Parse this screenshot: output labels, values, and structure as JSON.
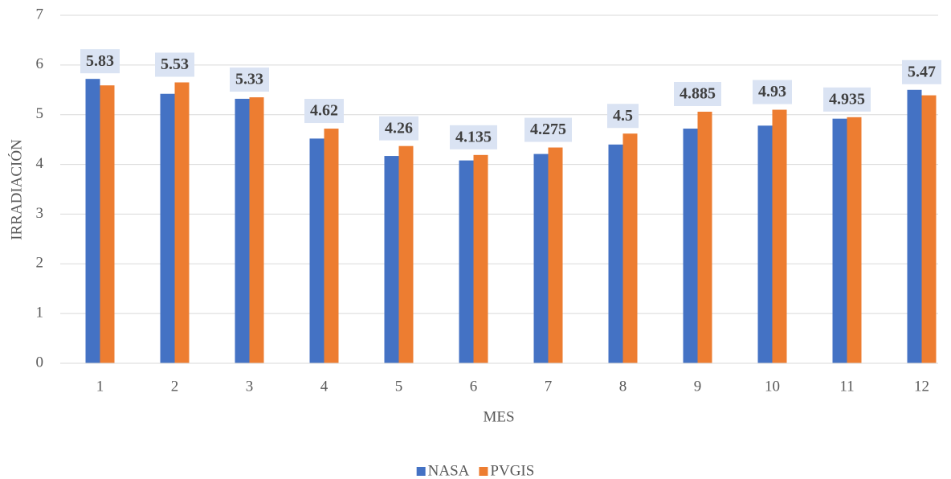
{
  "chart_data": {
    "type": "bar",
    "xlabel": "MES",
    "ylabel": "IRRADIACIÓN",
    "categories": [
      "1",
      "2",
      "3",
      "4",
      "5",
      "6",
      "7",
      "8",
      "9",
      "10",
      "11",
      "12"
    ],
    "series": [
      {
        "name": "NASA",
        "color": "#4472c4",
        "values": [
          5.72,
          5.42,
          5.32,
          4.52,
          4.17,
          4.08,
          4.21,
          4.4,
          4.72,
          4.78,
          4.92,
          5.5
        ]
      },
      {
        "name": "PVGIS",
        "color": "#ed7d31",
        "values": [
          5.59,
          5.65,
          5.35,
          4.72,
          4.37,
          4.19,
          4.34,
          4.62,
          5.06,
          5.1,
          4.95,
          5.39
        ]
      }
    ],
    "annotations": [
      5.83,
      5.53,
      5.33,
      4.62,
      4.26,
      4.135,
      4.275,
      4.5,
      4.885,
      4.93,
      4.935,
      5.47
    ],
    "ylim": [
      0,
      7
    ],
    "yticks": [
      0,
      1,
      2,
      3,
      4,
      5,
      6,
      7
    ],
    "grid": true,
    "legend": "bottom"
  }
}
